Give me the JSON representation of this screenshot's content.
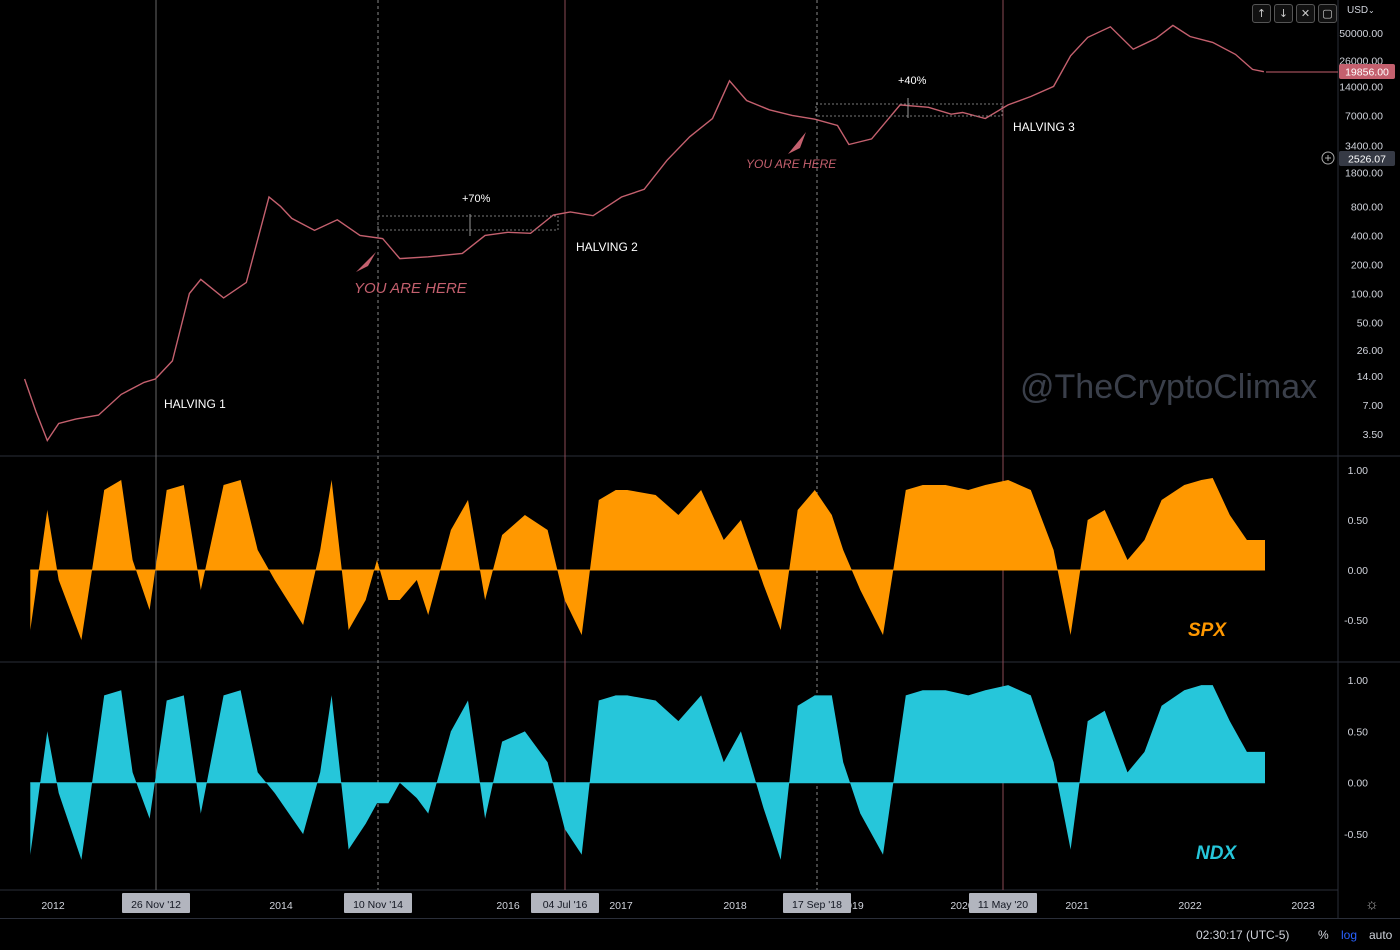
{
  "toolbar": {
    "currency": "USD",
    "buttons": [
      {
        "name": "scroll-up-button",
        "icon": "arrow-up-icon",
        "glyph": "↑"
      },
      {
        "name": "scroll-down-button",
        "icon": "arrow-down-icon",
        "glyph": "↓"
      },
      {
        "name": "close-button",
        "icon": "close-icon",
        "glyph": "✕"
      },
      {
        "name": "maximize-button",
        "icon": "maximize-icon",
        "glyph": "▢"
      }
    ]
  },
  "price_pane": {
    "watermark": "@TheCryptoClimax",
    "y_ticks": [
      "50000.00",
      "26000.00",
      "14000.00",
      "7000.00",
      "3400.00",
      "1800.00",
      "800.00",
      "400.00",
      "200.00",
      "100.00",
      "50.00",
      "26.00",
      "14.00",
      "7.00",
      "3.50"
    ],
    "last_price": "19856.00",
    "crosshair_price": "2526.07",
    "annotations": {
      "halving_1": "HALVING 1",
      "halving_2": "HALVING 2",
      "halving_3": "HALVING 3",
      "you_are_here_1": "YOU ARE HERE",
      "you_are_here_2": "YOU ARE HERE",
      "gain_1": "+70%",
      "gain_2": "+40%"
    }
  },
  "spx_pane": {
    "label": "SPX",
    "y_ticks": [
      "1.00",
      "0.50",
      "0.00",
      "-0.50"
    ]
  },
  "ndx_pane": {
    "label": "NDX",
    "y_ticks": [
      "1.00",
      "0.50",
      "0.00",
      "-0.50"
    ]
  },
  "x_axis": {
    "years": [
      "2012",
      "2014",
      "2016",
      "2017",
      "2018",
      "2019",
      "2020",
      "2021",
      "2022",
      "2023"
    ],
    "markers": [
      "26 Nov '12",
      "10 Nov '14",
      "04 Jul '16",
      "17 Sep '18",
      "11 May '20"
    ]
  },
  "bottom_bar": {
    "clock": "02:30:17 (UTC-5)",
    "percent": "%",
    "log": "log",
    "auto": "auto"
  },
  "colors": {
    "price": "#c4606e",
    "spx": "#ff9800",
    "ndx": "#26c6da",
    "annotation": "#c4606e"
  },
  "chart_data": [
    {
      "type": "line",
      "name": "BTCUSD",
      "log_scale": true,
      "ylim": [
        2.5,
        80000
      ],
      "x": [
        2011.75,
        2011.85,
        2011.95,
        2012.05,
        2012.2,
        2012.4,
        2012.6,
        2012.8,
        2012.9,
        2013.05,
        2013.2,
        2013.3,
        2013.5,
        2013.7,
        2013.9,
        2014.0,
        2014.1,
        2014.3,
        2014.5,
        2014.7,
        2014.9,
        2015.05,
        2015.3,
        2015.6,
        2015.8,
        2016.0,
        2016.2,
        2016.4,
        2016.55,
        2016.75,
        2017.0,
        2017.2,
        2017.4,
        2017.6,
        2017.8,
        2017.95,
        2018.1,
        2018.3,
        2018.5,
        2018.7,
        2018.9,
        2019.0,
        2019.2,
        2019.45,
        2019.7,
        2019.9,
        2020.0,
        2020.2,
        2020.4,
        2020.6,
        2020.8,
        2020.95,
        2021.1,
        2021.3,
        2021.5,
        2021.7,
        2021.85,
        2022.0,
        2022.2,
        2022.4,
        2022.55,
        2022.65
      ],
      "y": [
        13,
        6,
        3,
        4.5,
        5,
        5.5,
        9,
        12,
        13,
        20,
        100,
        140,
        90,
        130,
        1000,
        800,
        600,
        450,
        580,
        400,
        370,
        230,
        240,
        260,
        400,
        430,
        420,
        650,
        700,
        640,
        1000,
        1200,
        2400,
        4200,
        6500,
        16000,
        10000,
        8000,
        7000,
        6400,
        5500,
        3500,
        4000,
        9000,
        8500,
        7200,
        7500,
        6500,
        9000,
        11000,
        14000,
        29000,
        45000,
        58000,
        34000,
        44000,
        60000,
        46000,
        40000,
        30000,
        21000,
        19856
      ]
    },
    {
      "type": "area",
      "name": "SPX",
      "ylim": [
        -0.75,
        1.0
      ],
      "x": [
        2011.8,
        2011.95,
        2012.05,
        2012.25,
        2012.45,
        2012.6,
        2012.7,
        2012.85,
        2013.0,
        2013.15,
        2013.3,
        2013.5,
        2013.65,
        2013.8,
        2013.95,
        2014.2,
        2014.35,
        2014.45,
        2014.6,
        2014.75,
        2014.85,
        2014.95,
        2015.05,
        2015.2,
        2015.3,
        2015.5,
        2015.65,
        2015.8,
        2015.95,
        2016.15,
        2016.35,
        2016.5,
        2016.65,
        2016.8,
        2016.95,
        2017.05,
        2017.3,
        2017.5,
        2017.7,
        2017.9,
        2018.05,
        2018.25,
        2018.4,
        2018.55,
        2018.7,
        2018.85,
        2018.95,
        2019.1,
        2019.3,
        2019.5,
        2019.65,
        2019.85,
        2020.05,
        2020.2,
        2020.4,
        2020.6,
        2020.8,
        2020.95,
        2021.1,
        2021.25,
        2021.45,
        2021.6,
        2021.75,
        2021.95,
        2022.1,
        2022.2,
        2022.35,
        2022.5,
        2022.62,
        2022.66
      ],
      "y": [
        -0.6,
        0.6,
        -0.1,
        -0.7,
        0.8,
        0.9,
        0.1,
        -0.4,
        0.8,
        0.85,
        -0.2,
        0.85,
        0.9,
        0.2,
        -0.1,
        -0.55,
        0.2,
        0.9,
        -0.6,
        -0.3,
        0.1,
        -0.3,
        -0.3,
        -0.1,
        -0.45,
        0.4,
        0.7,
        -0.3,
        0.35,
        0.55,
        0.4,
        -0.3,
        -0.65,
        0.7,
        0.8,
        0.8,
        0.75,
        0.55,
        0.8,
        0.3,
        0.5,
        -0.15,
        -0.6,
        0.6,
        0.8,
        0.55,
        0.2,
        -0.2,
        -0.65,
        0.8,
        0.85,
        0.85,
        0.8,
        0.85,
        0.9,
        0.8,
        0.2,
        -0.65,
        0.5,
        0.6,
        0.1,
        0.3,
        0.7,
        0.85,
        0.9,
        0.92,
        0.55,
        0.3,
        0.3,
        0.3
      ]
    },
    {
      "type": "area",
      "name": "NDX",
      "ylim": [
        -0.85,
        1.0
      ],
      "x": [
        2011.8,
        2011.95,
        2012.05,
        2012.25,
        2012.45,
        2012.6,
        2012.7,
        2012.85,
        2013.0,
        2013.15,
        2013.3,
        2013.5,
        2013.65,
        2013.8,
        2013.95,
        2014.2,
        2014.35,
        2014.45,
        2014.6,
        2014.75,
        2014.85,
        2014.95,
        2015.05,
        2015.2,
        2015.3,
        2015.5,
        2015.65,
        2015.8,
        2015.95,
        2016.15,
        2016.35,
        2016.5,
        2016.65,
        2016.8,
        2016.95,
        2017.05,
        2017.3,
        2017.5,
        2017.7,
        2017.9,
        2018.05,
        2018.25,
        2018.4,
        2018.55,
        2018.7,
        2018.85,
        2018.95,
        2019.1,
        2019.3,
        2019.5,
        2019.65,
        2019.85,
        2020.05,
        2020.2,
        2020.4,
        2020.6,
        2020.8,
        2020.95,
        2021.1,
        2021.25,
        2021.45,
        2021.6,
        2021.75,
        2021.95,
        2022.1,
        2022.2,
        2022.35,
        2022.5,
        2022.62,
        2022.66
      ],
      "y": [
        -0.7,
        0.5,
        -0.1,
        -0.75,
        0.85,
        0.9,
        0.1,
        -0.35,
        0.8,
        0.85,
        -0.3,
        0.85,
        0.9,
        0.1,
        -0.1,
        -0.5,
        0.1,
        0.85,
        -0.65,
        -0.4,
        -0.2,
        -0.2,
        0.0,
        -0.15,
        -0.3,
        0.5,
        0.8,
        -0.35,
        0.4,
        0.5,
        0.2,
        -0.45,
        -0.7,
        0.8,
        0.85,
        0.85,
        0.8,
        0.6,
        0.85,
        0.2,
        0.5,
        -0.25,
        -0.75,
        0.75,
        0.85,
        0.85,
        0.2,
        -0.3,
        -0.7,
        0.85,
        0.9,
        0.9,
        0.85,
        0.9,
        0.95,
        0.85,
        0.2,
        -0.65,
        0.6,
        0.7,
        0.1,
        0.3,
        0.75,
        0.9,
        0.95,
        0.95,
        0.6,
        0.3,
        0.3,
        0.3
      ]
    }
  ]
}
